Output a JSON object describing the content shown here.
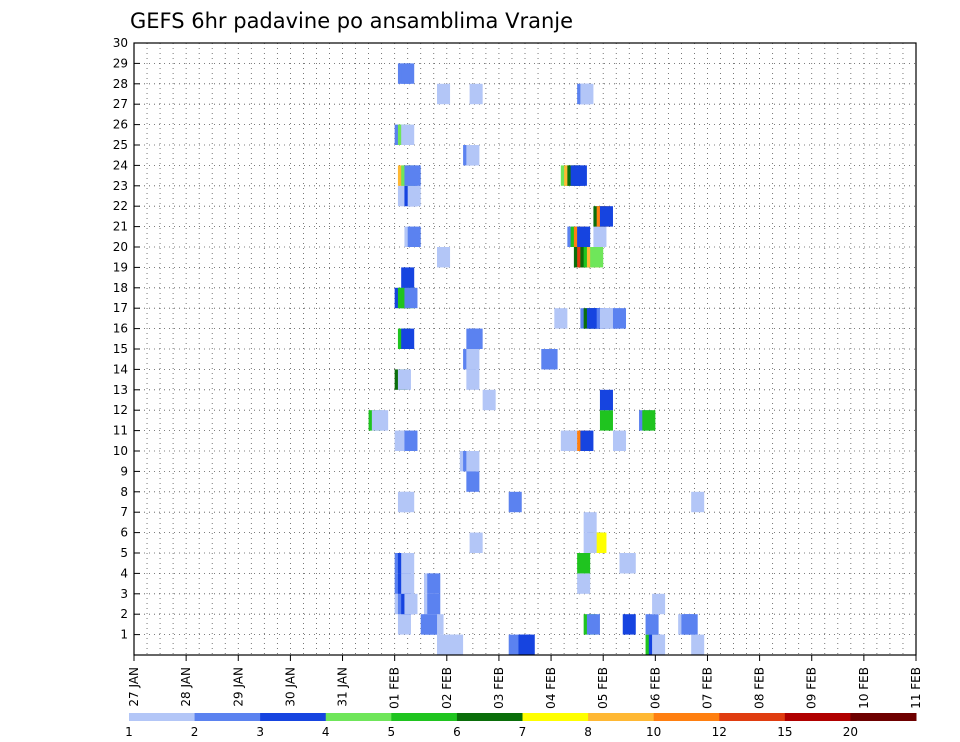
{
  "chart_data": {
    "type": "heatmap",
    "title": "GEFS 6hr padavine po ansamblima Vranje",
    "xlabel": "",
    "ylabel": "",
    "x_ticks": [
      "27 JAN",
      "28 JAN",
      "29 JAN",
      "30 JAN",
      "31 JAN",
      "01 FEB",
      "02 FEB",
      "03 FEB",
      "04 FEB",
      "05 FEB",
      "06 FEB",
      "07 FEB",
      "08 FEB",
      "09 FEB",
      "10 FEB",
      "11 FEB"
    ],
    "x_range": [
      0,
      15
    ],
    "y_ticks": [
      "1",
      "2",
      "3",
      "4",
      "5",
      "6",
      "7",
      "8",
      "9",
      "10",
      "11",
      "12",
      "13",
      "14",
      "15",
      "16",
      "17",
      "18",
      "19",
      "20",
      "21",
      "22",
      "23",
      "24",
      "25",
      "26",
      "27",
      "28",
      "29",
      "30"
    ],
    "y_range": [
      0,
      30
    ],
    "grid": true,
    "colorbar": {
      "labels": [
        "1",
        "2",
        "3",
        "4",
        "5",
        "6",
        "7",
        "8",
        "10",
        "12",
        "15",
        "20"
      ],
      "colors": [
        "#b3c6f7",
        "#5b82f0",
        "#1644e0",
        "#6fe65a",
        "#1fc41f",
        "#0a6e0a",
        "#ffff00",
        "#ffb833",
        "#ff7f10",
        "#e03c10",
        "#b00000",
        "#6e0000"
      ]
    },
    "cells": [
      {
        "m": 0,
        "t": 23.25,
        "v": 1
      },
      {
        "m": 0,
        "t": 24.0,
        "v": 1
      },
      {
        "m": 0,
        "t": 24.25,
        "v": 1
      },
      {
        "m": 0,
        "t": 28.75,
        "v": 2
      },
      {
        "m": 0,
        "t": 29.5,
        "v": 3
      },
      {
        "m": 0,
        "t": 29.75,
        "v": 3
      },
      {
        "m": 0,
        "t": 39.25,
        "v": 5
      },
      {
        "m": 0,
        "t": 39.5,
        "v": 3
      },
      {
        "m": 0,
        "t": 39.75,
        "v": 1
      },
      {
        "m": 0,
        "t": 42.75,
        "v": 1
      },
      {
        "m": 1,
        "t": 20.25,
        "v": 1
      },
      {
        "m": 1,
        "t": 22.0,
        "v": 2
      },
      {
        "m": 1,
        "t": 22.25,
        "v": 2
      },
      {
        "m": 1,
        "t": 22.5,
        "v": 1
      },
      {
        "m": 1,
        "t": 22.75,
        "v": 1
      },
      {
        "m": 1,
        "t": 22.25,
        "v": 2
      },
      {
        "m": 1,
        "t": 34.5,
        "v": 5
      },
      {
        "m": 1,
        "t": 34.75,
        "v": 2
      },
      {
        "m": 1,
        "t": 37.5,
        "v": 3
      },
      {
        "m": 1,
        "t": 39.25,
        "v": 2
      },
      {
        "m": 1,
        "t": 41.75,
        "v": 1
      },
      {
        "m": 1,
        "t": 42.0,
        "v": 2
      },
      {
        "m": 1,
        "t": 42.25,
        "v": 2
      },
      {
        "m": 2,
        "t": 20.0,
        "v": 1
      },
      {
        "m": 2,
        "t": 20.25,
        "v": 2
      },
      {
        "m": 2,
        "t": 20.5,
        "v": 3
      },
      {
        "m": 2,
        "t": 20.75,
        "v": 1
      },
      {
        "m": 2,
        "t": 22.25,
        "v": 1
      },
      {
        "m": 2,
        "t": 22.5,
        "v": 2
      },
      {
        "m": 2,
        "t": 39.75,
        "v": 1
      },
      {
        "m": 3,
        "t": 20.0,
        "v": 2
      },
      {
        "m": 3,
        "t": 20.25,
        "v": 3
      },
      {
        "m": 3,
        "t": 20.5,
        "v": 1
      },
      {
        "m": 3,
        "t": 22.25,
        "v": 1
      },
      {
        "m": 3,
        "t": 22.5,
        "v": 2
      },
      {
        "m": 3,
        "t": 34.0,
        "v": 1
      },
      {
        "m": 4,
        "t": 20.0,
        "v": 2
      },
      {
        "m": 4,
        "t": 20.25,
        "v": 3
      },
      {
        "m": 4,
        "t": 20.5,
        "v": 1
      },
      {
        "m": 4,
        "t": 34.0,
        "v": 5
      },
      {
        "m": 4,
        "t": 37.25,
        "v": 1
      },
      {
        "m": 4,
        "t": 37.5,
        "v": 1
      },
      {
        "m": 5,
        "t": 25.75,
        "v": 1
      },
      {
        "m": 5,
        "t": 34.75,
        "v": 3
      },
      {
        "m": 5,
        "t": 35.0,
        "v": 6
      },
      {
        "m": 5,
        "t": 35.25,
        "v": 7
      },
      {
        "m": 5,
        "t": 34.5,
        "v": 1
      },
      {
        "m": 6,
        "t": 34.5,
        "v": 1
      },
      {
        "m": 7,
        "t": 20.25,
        "v": 1
      },
      {
        "m": 7,
        "t": 20.5,
        "v": 1
      },
      {
        "m": 7,
        "t": 28.75,
        "v": 2
      },
      {
        "m": 7,
        "t": 42.75,
        "v": 1
      },
      {
        "m": 8,
        "t": 25.5,
        "v": 2
      },
      {
        "m": 9,
        "t": 25.0,
        "v": 1
      },
      {
        "m": 9,
        "t": 25.25,
        "v": 2
      },
      {
        "m": 9,
        "t": 25.5,
        "v": 1
      },
      {
        "m": 10,
        "t": 20.0,
        "v": 1
      },
      {
        "m": 10,
        "t": 20.25,
        "v": 1
      },
      {
        "m": 10,
        "t": 20.5,
        "v": 1
      },
      {
        "m": 10,
        "t": 20.75,
        "v": 2
      },
      {
        "m": 10,
        "t": 32.75,
        "v": 1
      },
      {
        "m": 10,
        "t": 33.0,
        "v": 1
      },
      {
        "m": 10,
        "t": 34.0,
        "v": 9
      },
      {
        "m": 10,
        "t": 34.25,
        "v": 3
      },
      {
        "m": 10,
        "t": 36.75,
        "v": 1
      },
      {
        "m": 11,
        "t": 18.0,
        "v": 5
      },
      {
        "m": 11,
        "t": 18.25,
        "v": 1
      },
      {
        "m": 11,
        "t": 18.5,
        "v": 1
      },
      {
        "m": 11,
        "t": 35.75,
        "v": 5
      },
      {
        "m": 11,
        "t": 38.75,
        "v": 2
      },
      {
        "m": 11,
        "t": 39.0,
        "v": 5
      },
      {
        "m": 12,
        "t": 26.75,
        "v": 1
      },
      {
        "m": 12,
        "t": 35.75,
        "v": 3
      },
      {
        "m": 13,
        "t": 20.0,
        "v": 6
      },
      {
        "m": 13,
        "t": 20.25,
        "v": 1
      },
      {
        "m": 13,
        "t": 25.5,
        "v": 1
      },
      {
        "m": 14,
        "t": 25.25,
        "v": 2
      },
      {
        "m": 14,
        "t": 25.5,
        "v": 1
      },
      {
        "m": 14,
        "t": 31.25,
        "v": 2
      },
      {
        "m": 14,
        "t": 31.5,
        "v": 2
      },
      {
        "m": 15,
        "t": 20.25,
        "v": 5
      },
      {
        "m": 15,
        "t": 20.5,
        "v": 3
      },
      {
        "m": 15,
        "t": 25.5,
        "v": 2
      },
      {
        "m": 15,
        "t": 25.75,
        "v": 2
      },
      {
        "m": 16,
        "t": 32.25,
        "v": 1
      },
      {
        "m": 16,
        "t": 34.25,
        "v": 2
      },
      {
        "m": 16,
        "t": 34.5,
        "v": 6
      },
      {
        "m": 16,
        "t": 34.75,
        "v": 3
      },
      {
        "m": 16,
        "t": 35.0,
        "v": 3
      },
      {
        "m": 16,
        "t": 35.25,
        "v": 3
      },
      {
        "m": 16,
        "t": 35.5,
        "v": 2
      },
      {
        "m": 16,
        "t": 35.75,
        "v": 1
      },
      {
        "m": 16,
        "t": 36.0,
        "v": 1
      },
      {
        "m": 16,
        "t": 36.25,
        "v": 1
      },
      {
        "m": 16,
        "t": 36.5,
        "v": 1
      },
      {
        "m": 16,
        "t": 36.75,
        "v": 2
      },
      {
        "m": 17,
        "t": 20.0,
        "v": 3
      },
      {
        "m": 17,
        "t": 20.25,
        "v": 5
      },
      {
        "m": 17,
        "t": 20.5,
        "v": 5
      },
      {
        "m": 17,
        "t": 20.75,
        "v": 2
      },
      {
        "m": 18,
        "t": 20.5,
        "v": 3
      },
      {
        "m": 19,
        "t": 23.25,
        "v": 1
      },
      {
        "m": 19,
        "t": 33.75,
        "v": 6
      },
      {
        "m": 19,
        "t": 34.0,
        "v": 10
      },
      {
        "m": 19,
        "t": 34.25,
        "v": 6
      },
      {
        "m": 19,
        "t": 34.5,
        "v": 5
      },
      {
        "m": 19,
        "t": 34.75,
        "v": 8
      },
      {
        "m": 19,
        "t": 35.0,
        "v": 4
      },
      {
        "m": 20,
        "t": 20.75,
        "v": 1
      },
      {
        "m": 20,
        "t": 21.0,
        "v": 2
      },
      {
        "m": 20,
        "t": 33.25,
        "v": 2
      },
      {
        "m": 20,
        "t": 33.5,
        "v": 5
      },
      {
        "m": 20,
        "t": 33.75,
        "v": 9
      },
      {
        "m": 20,
        "t": 34.0,
        "v": 3
      },
      {
        "m": 20,
        "t": 35.25,
        "v": 1
      },
      {
        "m": 21,
        "t": 35.25,
        "v": 6
      },
      {
        "m": 21,
        "t": 35.5,
        "v": 9
      },
      {
        "m": 21,
        "t": 35.75,
        "v": 3
      },
      {
        "m": 22,
        "t": 20.25,
        "v": 1
      },
      {
        "m": 22,
        "t": 20.5,
        "v": 1
      },
      {
        "m": 22,
        "t": 20.75,
        "v": 3
      },
      {
        "m": 22,
        "t": 21.0,
        "v": 1
      },
      {
        "m": 23,
        "t": 20.25,
        "v": 8
      },
      {
        "m": 23,
        "t": 20.5,
        "v": 4
      },
      {
        "m": 23,
        "t": 20.75,
        "v": 2
      },
      {
        "m": 23,
        "t": 21.0,
        "v": 2
      },
      {
        "m": 23,
        "t": 32.75,
        "v": 4
      },
      {
        "m": 23,
        "t": 33.0,
        "v": 8
      },
      {
        "m": 23,
        "t": 33.25,
        "v": 6
      },
      {
        "m": 23,
        "t": 33.5,
        "v": 3
      },
      {
        "m": 23,
        "t": 33.75,
        "v": 3
      },
      {
        "m": 24,
        "t": 25.25,
        "v": 2
      },
      {
        "m": 24,
        "t": 25.5,
        "v": 1
      },
      {
        "m": 25,
        "t": 20.0,
        "v": 2
      },
      {
        "m": 25,
        "t": 20.25,
        "v": 4
      },
      {
        "m": 25,
        "t": 20.5,
        "v": 1
      },
      {
        "m": 27,
        "t": 23.25,
        "v": 1
      },
      {
        "m": 27,
        "t": 25.75,
        "v": 1
      },
      {
        "m": 27,
        "t": 34.0,
        "v": 2
      },
      {
        "m": 27,
        "t": 34.25,
        "v": 1
      },
      {
        "m": 28,
        "t": 20.25,
        "v": 2
      },
      {
        "m": 28,
        "t": 20.5,
        "v": 2
      }
    ]
  }
}
